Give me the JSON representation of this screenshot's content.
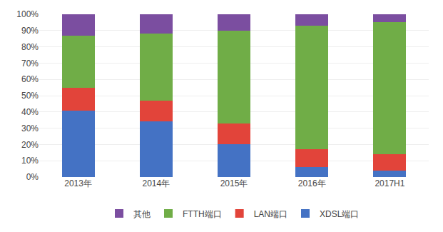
{
  "chart_data": {
    "type": "bar",
    "stacked": true,
    "categories": [
      "2013年",
      "2014年",
      "2015年",
      "2016年",
      "2017H1"
    ],
    "series": [
      {
        "name": "XDSL端口",
        "color": "#4472C4",
        "values": [
          41,
          34,
          20,
          6,
          4
        ]
      },
      {
        "name": "LAN端口",
        "color": "#E2443A",
        "values": [
          14,
          13,
          13,
          11,
          10
        ]
      },
      {
        "name": "FTTH端口",
        "color": "#70AD47",
        "values": [
          32,
          41,
          57,
          76,
          81
        ]
      },
      {
        "name": "其他",
        "color": "#7B4EA0",
        "values": [
          13,
          12,
          10,
          7,
          5
        ]
      }
    ],
    "ylim": [
      0,
      100
    ],
    "yticks": [
      {
        "value": 0,
        "label": "0%"
      },
      {
        "value": 10,
        "label": "10%"
      },
      {
        "value": 20,
        "label": "20%"
      },
      {
        "value": 30,
        "label": "30%"
      },
      {
        "value": 40,
        "label": "40%"
      },
      {
        "value": 50,
        "label": "50%"
      },
      {
        "value": 60,
        "label": "60%"
      },
      {
        "value": 70,
        "label": "70%"
      },
      {
        "value": 80,
        "label": "80%"
      },
      {
        "value": 90,
        "label": "90%"
      },
      {
        "value": 100,
        "label": "100%"
      }
    ],
    "grid": true,
    "legend": "bottom"
  }
}
